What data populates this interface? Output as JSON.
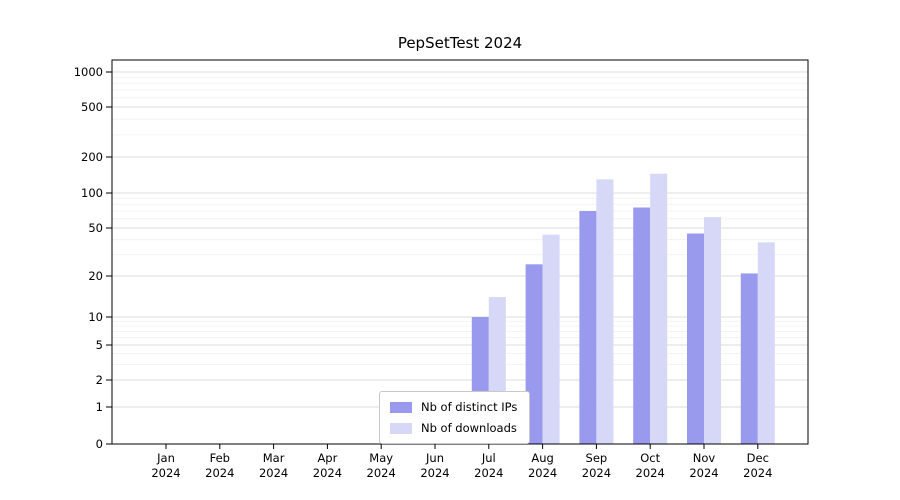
{
  "chart_data": {
    "type": "bar",
    "title": "PepSetTest 2024",
    "yscale": "symlog",
    "grid": true,
    "legend_position": "bottom-center",
    "categories": [
      "Jan",
      "Feb",
      "Mar",
      "Apr",
      "May",
      "Jun",
      "Jul",
      "Aug",
      "Sep",
      "Oct",
      "Nov",
      "Dec"
    ],
    "year_label": "2024",
    "yticks": [
      0,
      1,
      2,
      5,
      10,
      20,
      50,
      100,
      200,
      500,
      1000
    ],
    "series": [
      {
        "name": "Nb of distinct IPs",
        "color": "#9999ed",
        "values": [
          0,
          0,
          0,
          0,
          0,
          0,
          10,
          25,
          70,
          75,
          45,
          21
        ]
      },
      {
        "name": "Nb of downloads",
        "color": "#d7d7f8",
        "values": [
          0,
          0,
          0,
          0,
          0,
          0,
          14,
          44,
          130,
          145,
          62,
          38
        ]
      }
    ],
    "colors": {
      "grid_major": "#dcdcdc",
      "grid_minor": "#f0f0f0",
      "axis": "#000000"
    }
  }
}
